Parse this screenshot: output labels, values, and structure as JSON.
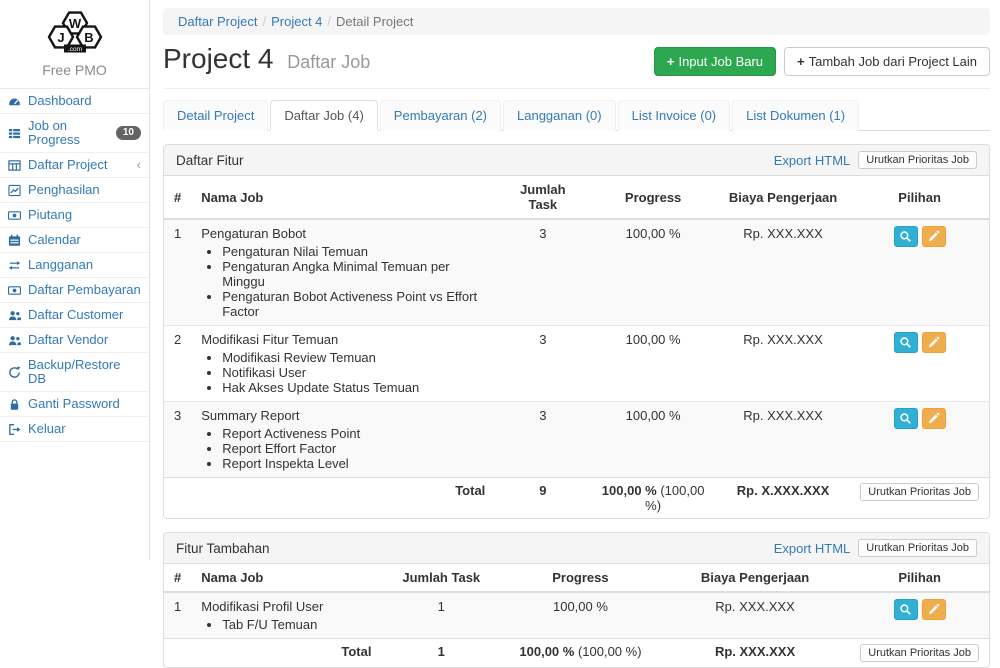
{
  "colors": {
    "link_blue": "#337ab7",
    "success_green": "#2da850",
    "info_cyan": "#31b0d5",
    "warning_orange": "#f0ad4e",
    "badge_gray": "#636363",
    "panel_heading_bg": "#f5f5f5"
  },
  "sidebar": {
    "logo": {
      "left": "J",
      "top": "W",
      "right": "B",
      "com": ".com"
    },
    "brand": "Free PMO",
    "items": [
      {
        "icon": "tachometer-icon",
        "label": "Dashboard"
      },
      {
        "icon": "list-icon",
        "label": "Job on Progress",
        "badge": "10"
      },
      {
        "icon": "table-icon",
        "label": "Daftar Project",
        "chevron": "‹"
      },
      {
        "icon": "line-chart-icon",
        "label": "Penghasilan"
      },
      {
        "icon": "money-icon",
        "label": "Piutang"
      },
      {
        "icon": "calendar-icon",
        "label": "Calendar"
      },
      {
        "icon": "repeat-icon",
        "label": "Langganan"
      },
      {
        "icon": "money-icon",
        "label": "Daftar Pembayaran"
      },
      {
        "icon": "users-icon",
        "label": "Daftar Customer"
      },
      {
        "icon": "users-icon",
        "label": "Daftar Vendor"
      },
      {
        "icon": "refresh-icon",
        "label": "Backup/Restore DB"
      },
      {
        "icon": "lock-icon",
        "label": "Ganti Password"
      },
      {
        "icon": "sign-out-icon",
        "label": "Keluar"
      }
    ]
  },
  "breadcrumb": {
    "separator": "/",
    "items": [
      {
        "label": "Daftar Project",
        "link": true
      },
      {
        "label": "Project 4",
        "link": true
      },
      {
        "label": "Detail Project",
        "link": false
      }
    ]
  },
  "header": {
    "title": "Project 4",
    "subtitle": "Daftar Job",
    "buttons": [
      {
        "icon": "plus-icon",
        "glyph": "+",
        "label": "Input Job Baru",
        "style": "success"
      },
      {
        "icon": "plus-icon",
        "glyph": "+",
        "label": "Tambah Job dari Project Lain",
        "style": "default"
      }
    ]
  },
  "tabs": [
    {
      "label": "Detail Project",
      "active": false
    },
    {
      "label": "Daftar Job (4)",
      "active": true
    },
    {
      "label": "Pembayaran (2)",
      "active": false
    },
    {
      "label": "Langganan (0)",
      "active": false
    },
    {
      "label": "List Invoice (0)",
      "active": false
    },
    {
      "label": "List Dokumen (1)",
      "active": false
    }
  ],
  "panels": [
    {
      "id": "daftar-fitur",
      "title": "Daftar Fitur",
      "export_label": "Export HTML",
      "sort_label": "Urutkan Prioritas Job",
      "columns": [
        "#",
        "Nama Job",
        "Jumlah Task",
        "Progress",
        "Biaya Pengerjaan",
        "Pilihan"
      ],
      "rows": [
        {
          "num": "1",
          "name": "Pengaturan Bobot",
          "subtasks": [
            "Pengaturan Nilai Temuan",
            "Pengaturan Angka Minimal Temuan per Minggu",
            "Pengaturan Bobot Activeness Point vs Effort Factor"
          ],
          "tasks": "3",
          "progress": "100,00 %",
          "cost": "Rp. XXX.XXX",
          "actions": [
            "search-icon",
            "edit-icon"
          ]
        },
        {
          "num": "2",
          "name": "Modifikasi Fitur Temuan",
          "subtasks": [
            "Modifikasi Review Temuan",
            "Notifikasi User",
            "Hak Akses Update Status Temuan"
          ],
          "tasks": "3",
          "progress": "100,00 %",
          "cost": "Rp. XXX.XXX",
          "actions": [
            "search-icon",
            "edit-icon"
          ]
        },
        {
          "num": "3",
          "name": "Summary Report",
          "subtasks": [
            "Report Activeness Point",
            "Report Effort Factor",
            "Report Inspekta Level"
          ],
          "tasks": "3",
          "progress": "100,00 %",
          "cost": "Rp. XXX.XXX",
          "actions": [
            "search-icon",
            "edit-icon"
          ]
        }
      ],
      "total": {
        "label": "Total",
        "tasks": "9",
        "progress": "100,00 %",
        "progress_note": "(100,00 %)",
        "cost": "Rp. X.XXX.XXX",
        "button": "Urutkan Prioritas Job"
      }
    },
    {
      "id": "fitur-tambahan",
      "title": "Fitur Tambahan",
      "export_label": "Export HTML",
      "sort_label": "Urutkan Prioritas Job",
      "columns": [
        "#",
        "Nama Job",
        "Jumlah Task",
        "Progress",
        "Biaya Pengerjaan",
        "Pilihan"
      ],
      "rows": [
        {
          "num": "1",
          "name": "Modifikasi Profil User",
          "subtasks": [
            "Tab F/U Temuan"
          ],
          "tasks": "1",
          "progress": "100,00 %",
          "cost": "Rp. XXX.XXX",
          "actions": [
            "search-icon",
            "edit-icon"
          ]
        }
      ],
      "total": {
        "label": "Total",
        "tasks": "1",
        "progress": "100,00 %",
        "progress_note": "(100,00 %)",
        "cost": "Rp. XXX.XXX",
        "button": "Urutkan Prioritas Job"
      }
    }
  ]
}
